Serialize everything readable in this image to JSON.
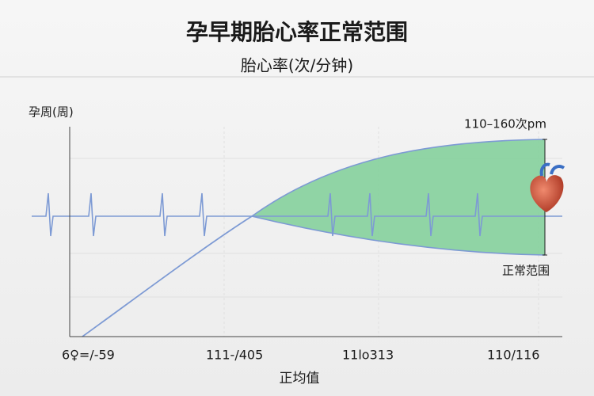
{
  "header": {
    "title": "孕早期胎心率正常范围",
    "subtitle": "胎心率(次/分钟)"
  },
  "axes": {
    "y_label": "孕周(周)",
    "x_label": "正均值",
    "x_tick_labels": [
      "6♀=/-59",
      "111-/405",
      "11lo313",
      "110/116"
    ]
  },
  "annotations": {
    "range_top": "110–160次pm",
    "range_label": "正常范围"
  }
}
